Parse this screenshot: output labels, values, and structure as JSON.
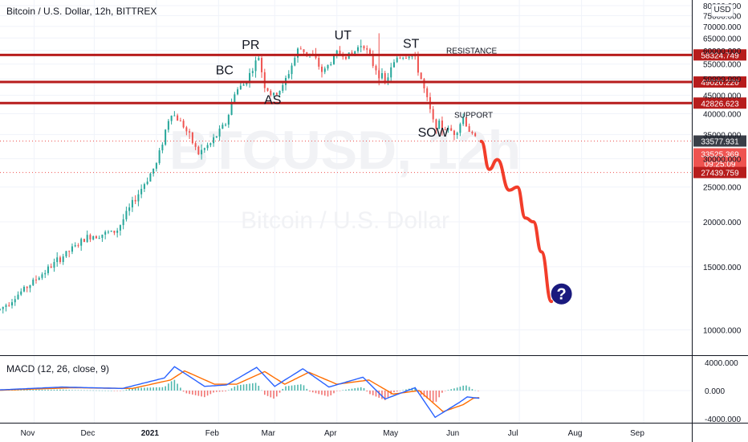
{
  "header": {
    "symbol_title": "Bitcoin / U.S. Dollar, 12h, BITTREX",
    "currency": "USD"
  },
  "watermark": {
    "ticker": "BTCUSD, 12h",
    "name": "Bitcoin / U.S. Dollar"
  },
  "colors": {
    "up": "#26a69a",
    "down": "#ef5350",
    "level_line": "#b71c1c",
    "projection": "#f23d2a",
    "question_badge": "#1a1a7e",
    "macd_line": "#2962ff",
    "signal_line": "#ff6d00"
  },
  "chart_data": [
    {
      "type": "candlestick",
      "title": "Bitcoin / U.S. Dollar, 12h, BITTREX",
      "y_scale": "log",
      "ylim": [
        9000,
        80000
      ],
      "y_ticks": [
        "80000.000",
        "75000.000",
        "70000.000",
        "65000.000",
        "60000.000",
        "55000.000",
        "50000.000",
        "45000.000",
        "40000.000",
        "35000.000",
        "30000.000",
        "25000.000",
        "20000.000",
        "15000.000",
        "10000.000"
      ],
      "x_labels": [
        "Nov",
        "Dec",
        "2021",
        "Feb",
        "Mar",
        "Apr",
        "May",
        "Jun",
        "Jul",
        "Aug",
        "Sep"
      ],
      "x_range": [
        "2020-10-15",
        "2021-09-25"
      ],
      "price_path": [
        {
          "date": "2020-10-15",
          "close": 11400
        },
        {
          "date": "2020-11-01",
          "close": 13700
        },
        {
          "date": "2020-11-15",
          "close": 16000
        },
        {
          "date": "2020-11-28",
          "close": 18200
        },
        {
          "date": "2020-12-12",
          "close": 18800
        },
        {
          "date": "2020-12-22",
          "close": 23500
        },
        {
          "date": "2021-01-01",
          "close": 29000
        },
        {
          "date": "2021-01-08",
          "close": 40500
        },
        {
          "date": "2021-01-14",
          "close": 37500
        },
        {
          "date": "2021-01-22",
          "close": 31000
        },
        {
          "date": "2021-01-28",
          "close": 33000
        },
        {
          "date": "2021-02-05",
          "close": 38000
        },
        {
          "date": "2021-02-09",
          "close": 46000
        },
        {
          "date": "2021-02-14",
          "close": 48500
        },
        {
          "date": "2021-02-21",
          "close": 57500
        },
        {
          "date": "2021-02-24",
          "close": 48000
        },
        {
          "date": "2021-02-28",
          "close": 44500
        },
        {
          "date": "2021-03-05",
          "close": 47500
        },
        {
          "date": "2021-03-13",
          "close": 61000
        },
        {
          "date": "2021-03-20",
          "close": 58000
        },
        {
          "date": "2021-03-25",
          "close": 52000
        },
        {
          "date": "2021-04-01",
          "close": 59000
        },
        {
          "date": "2021-04-08",
          "close": 58000
        },
        {
          "date": "2021-04-14",
          "close": 63500
        },
        {
          "date": "2021-04-18",
          "close": 56000
        },
        {
          "date": "2021-04-25",
          "close": 49000
        },
        {
          "date": "2021-05-01",
          "close": 57500
        },
        {
          "date": "2021-05-09",
          "close": 58500
        },
        {
          "date": "2021-05-13",
          "close": 50000
        },
        {
          "date": "2021-05-19",
          "close": 38000
        },
        {
          "date": "2021-05-24",
          "close": 36500
        },
        {
          "date": "2021-05-30",
          "close": 35500
        },
        {
          "date": "2021-06-03",
          "close": 39000
        },
        {
          "date": "2021-06-07",
          "close": 35000
        },
        {
          "date": "2021-06-10",
          "close": 33500
        }
      ],
      "levels": [
        {
          "value": 58324.749,
          "label": "58324.749",
          "name": "RESISTANCE"
        },
        {
          "value": 49020.22,
          "label": "49020.220",
          "name": ""
        },
        {
          "value": 42826.623,
          "label": "42826.623",
          "name": "SUPPORT"
        }
      ],
      "dotted_levels": [
        {
          "value": 33577.931,
          "label": "33577.931"
        },
        {
          "value": 27439.759,
          "label": "27439.759"
        }
      ],
      "last_price": {
        "value": 33525.369,
        "label": "33525.369",
        "countdown": "09:25:09"
      },
      "annotations": [
        {
          "text": "PR",
          "date": "2021-02-17",
          "price": 60500
        },
        {
          "text": "BC",
          "date": "2021-02-04",
          "price": 51500
        },
        {
          "text": "AS",
          "date": "2021-02-28",
          "price": 42600
        },
        {
          "text": "UT",
          "date": "2021-04-04",
          "price": 64500
        },
        {
          "text": "ST",
          "date": "2021-05-08",
          "price": 61000
        },
        {
          "text": "SOW",
          "date": "2021-05-19",
          "price": 34500
        }
      ],
      "projection": [
        {
          "date": "2021-06-12",
          "price": 33500
        },
        {
          "date": "2021-06-16",
          "price": 28000
        },
        {
          "date": "2021-06-20",
          "price": 29800
        },
        {
          "date": "2021-06-26",
          "price": 24500
        },
        {
          "date": "2021-06-30",
          "price": 25000
        },
        {
          "date": "2021-07-04",
          "price": 20500
        },
        {
          "date": "2021-07-08",
          "price": 20000
        },
        {
          "date": "2021-07-12",
          "price": 16500
        },
        {
          "date": "2021-07-17",
          "price": 12000
        }
      ],
      "question_mark": {
        "text": "?",
        "date": "2021-07-22",
        "price": 12600
      }
    },
    {
      "type": "macd",
      "title": "MACD (12, 26, close, 9)",
      "ylim": [
        -4000,
        4000
      ],
      "y_ticks": [
        "4000.000",
        "0.000",
        "-4000.000"
      ],
      "macd": [
        {
          "date": "2020-10-15",
          "value": 100
        },
        {
          "date": "2020-11-15",
          "value": 500
        },
        {
          "date": "2020-12-15",
          "value": 300
        },
        {
          "date": "2021-01-05",
          "value": 1800
        },
        {
          "date": "2021-01-10",
          "value": 3400
        },
        {
          "date": "2021-01-25",
          "value": 600
        },
        {
          "date": "2021-02-05",
          "value": 800
        },
        {
          "date": "2021-02-20",
          "value": 3300
        },
        {
          "date": "2021-03-01",
          "value": 600
        },
        {
          "date": "2021-03-15",
          "value": 3100
        },
        {
          "date": "2021-03-28",
          "value": 500
        },
        {
          "date": "2021-04-14",
          "value": 1900
        },
        {
          "date": "2021-04-25",
          "value": -1200
        },
        {
          "date": "2021-05-10",
          "value": 400
        },
        {
          "date": "2021-05-20",
          "value": -3800
        },
        {
          "date": "2021-06-01",
          "value": -1700
        },
        {
          "date": "2021-06-05",
          "value": -900
        },
        {
          "date": "2021-06-11",
          "value": -1100
        }
      ],
      "signal": [
        {
          "date": "2020-10-15",
          "value": 50
        },
        {
          "date": "2020-11-20",
          "value": 400
        },
        {
          "date": "2020-12-20",
          "value": 300
        },
        {
          "date": "2021-01-08",
          "value": 1500
        },
        {
          "date": "2021-01-15",
          "value": 2800
        },
        {
          "date": "2021-01-30",
          "value": 900
        },
        {
          "date": "2021-02-10",
          "value": 900
        },
        {
          "date": "2021-02-24",
          "value": 2700
        },
        {
          "date": "2021-03-06",
          "value": 900
        },
        {
          "date": "2021-03-18",
          "value": 2600
        },
        {
          "date": "2021-04-01",
          "value": 900
        },
        {
          "date": "2021-04-17",
          "value": 1500
        },
        {
          "date": "2021-04-29",
          "value": -500
        },
        {
          "date": "2021-05-12",
          "value": 0
        },
        {
          "date": "2021-05-24",
          "value": -3000
        },
        {
          "date": "2021-06-03",
          "value": -2000
        },
        {
          "date": "2021-06-08",
          "value": -1100
        },
        {
          "date": "2021-06-11",
          "value": -1000
        }
      ]
    }
  ]
}
